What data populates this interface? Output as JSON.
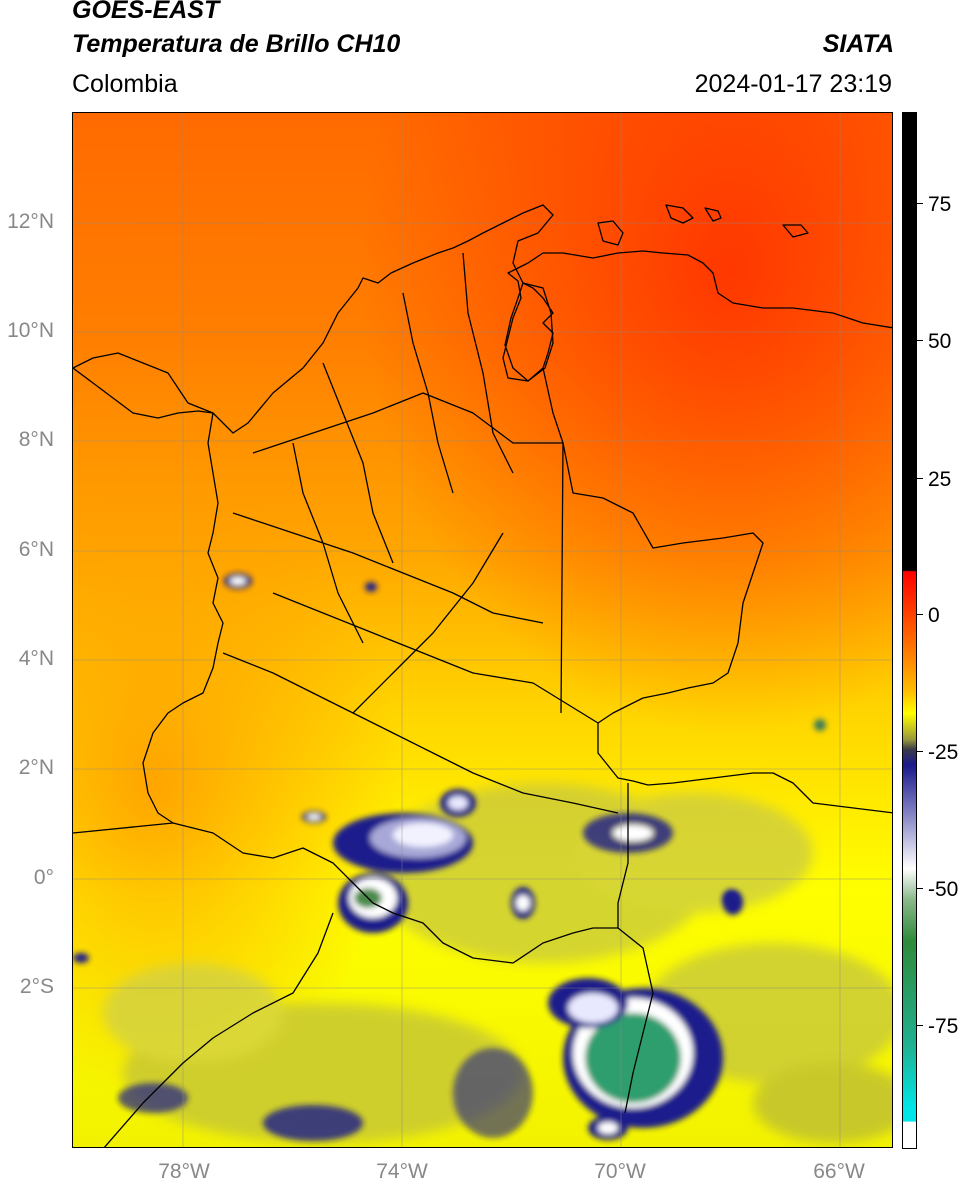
{
  "header": {
    "satellite": "GOES-EAST",
    "product": "Temperatura de Brillo CH10",
    "organization": "SIATA",
    "region": "Colombia",
    "datetime": "2024-01-17 23:19"
  },
  "map": {
    "lat_labels": [
      "12°N",
      "10°N",
      "8°N",
      "6°N",
      "4°N",
      "2°N",
      "0°",
      "2°S"
    ],
    "lon_labels": [
      "78°W",
      "74°W",
      "70°W",
      "66°W"
    ],
    "grid": true,
    "colors": {
      "warm_red": "#ff3a00",
      "orange": "#ff8c00",
      "yellow": "#ffff00",
      "olive": "#b8b838",
      "navy": "#1a1a8c",
      "white_cloud": "#f2f2ff",
      "green_core": "#2e9e6e",
      "border": "#000000"
    }
  },
  "colorbar": {
    "tick_labels": [
      "75",
      "50",
      "25",
      "0",
      "-25",
      "-50",
      "-75"
    ],
    "colors": [
      "#000000",
      "#ff0000",
      "#ff8c00",
      "#ffff00",
      "#9a9a3a",
      "#1a1a8c",
      "#ffffff",
      "#2e8b57",
      "#00e5e5"
    ]
  }
}
